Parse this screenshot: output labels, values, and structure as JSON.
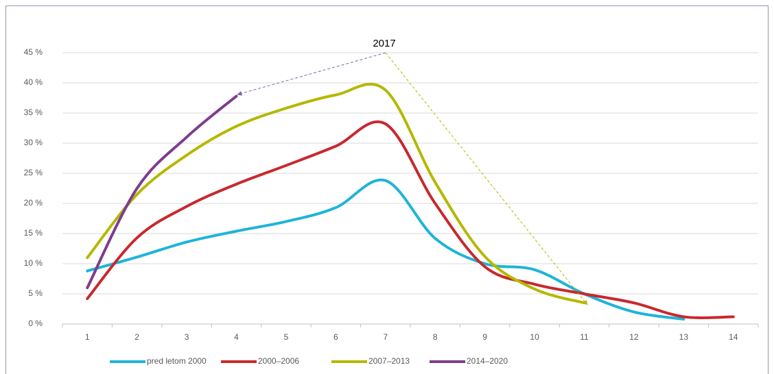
{
  "chart_data": {
    "type": "line",
    "annotation": "2017",
    "categories": [
      "1",
      "2",
      "3",
      "4",
      "5",
      "6",
      "7",
      "8",
      "9",
      "10",
      "11",
      "12",
      "13",
      "14"
    ],
    "series": [
      {
        "name": "pred letom 2000",
        "color": "#1fb4d8",
        "values": [
          8.8,
          11.1,
          13.6,
          15.4,
          17.0,
          19.3,
          23.8,
          14.2,
          10.0,
          9.0,
          5.0,
          2.0,
          0.8,
          null
        ]
      },
      {
        "name": "2000–2006",
        "color": "#c8282d",
        "values": [
          4.2,
          14.3,
          19.5,
          23.2,
          26.3,
          29.5,
          33.2,
          20.0,
          9.5,
          6.6,
          5.0,
          3.5,
          1.2,
          1.2
        ]
      },
      {
        "name": "2007–2013",
        "color": "#b5b800",
        "values": [
          11.0,
          21.5,
          28.0,
          32.8,
          35.8,
          38.0,
          38.8,
          23.5,
          11.2,
          5.8,
          3.5,
          null,
          null,
          null
        ]
      },
      {
        "name": "2014–2020",
        "color": "#7e3c8e",
        "values": [
          6.0,
          22.5,
          31.0,
          37.8,
          null,
          null,
          null,
          null,
          null,
          null,
          null,
          null,
          null,
          null
        ]
      }
    ],
    "ylim": [
      0,
      45
    ],
    "yticks": [
      {
        "value": 0,
        "label": "0 %"
      },
      {
        "value": 5,
        "label": "5 %"
      },
      {
        "value": 10,
        "label": "10 %"
      },
      {
        "value": 15,
        "label": "15 %"
      },
      {
        "value": 20,
        "label": "20 %"
      },
      {
        "value": 25,
        "label": "25 %"
      },
      {
        "value": 30,
        "label": "30 %"
      },
      {
        "value": 35,
        "label": "35 %"
      },
      {
        "value": 40,
        "label": "40 %"
      },
      {
        "value": 45,
        "label": "45 %"
      }
    ],
    "grid": true,
    "legend": "bottom"
  }
}
